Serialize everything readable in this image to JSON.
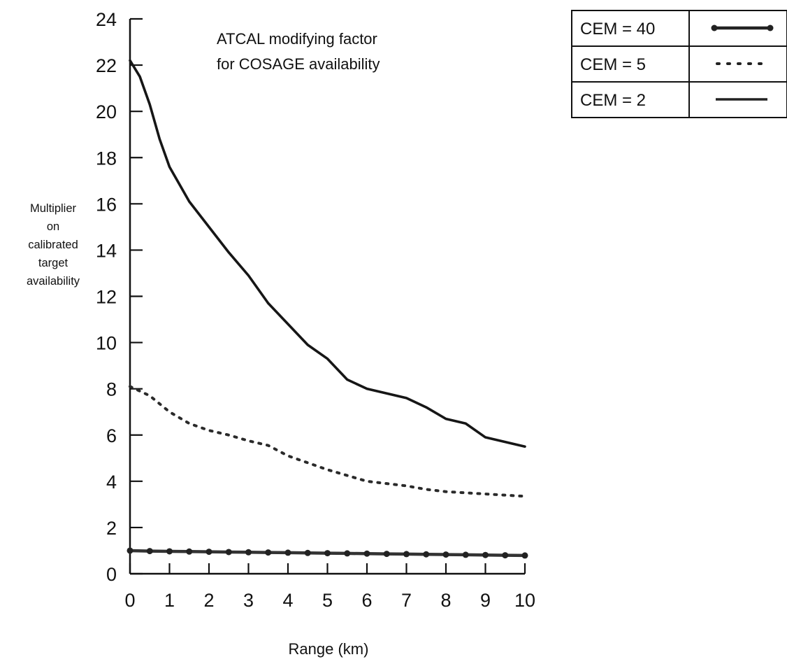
{
  "chart_data": {
    "type": "line",
    "title_lines": [
      "ATCAL modifying factor",
      "for COSAGE availability"
    ],
    "xlabel": "Range (km)",
    "ylabel_lines": [
      "Multiplier",
      "on",
      "calibrated",
      "target",
      "availability"
    ],
    "xlim": [
      0,
      10
    ],
    "ylim": [
      0,
      24
    ],
    "x_ticks": [
      0,
      1,
      2,
      3,
      4,
      5,
      6,
      7,
      8,
      9,
      10
    ],
    "y_ticks": [
      0,
      2,
      4,
      6,
      8,
      10,
      12,
      14,
      16,
      18,
      20,
      22,
      24
    ],
    "legend_position": "top-right",
    "series": [
      {
        "name": "CEM = 40",
        "style": "line-with-dots",
        "x": [
          0,
          0.5,
          1,
          1.5,
          2,
          2.5,
          3,
          3.5,
          4,
          4.5,
          5,
          5.5,
          6,
          6.5,
          7,
          7.5,
          8,
          8.5,
          9,
          9.5,
          10
        ],
        "y": [
          1.0,
          0.98,
          0.97,
          0.96,
          0.95,
          0.94,
          0.93,
          0.92,
          0.91,
          0.9,
          0.89,
          0.88,
          0.87,
          0.86,
          0.85,
          0.84,
          0.83,
          0.82,
          0.81,
          0.8,
          0.79
        ]
      },
      {
        "name": "CEM = 5",
        "style": "dotted",
        "x": [
          0,
          0.5,
          1,
          1.5,
          2,
          2.5,
          3,
          3.5,
          4,
          4.5,
          5,
          5.5,
          6,
          6.5,
          7,
          7.5,
          8,
          8.5,
          9,
          9.5,
          10
        ],
        "y": [
          8.1,
          7.7,
          7.0,
          6.5,
          6.2,
          6.0,
          5.75,
          5.55,
          5.1,
          4.8,
          4.5,
          4.25,
          4.0,
          3.9,
          3.8,
          3.65,
          3.55,
          3.5,
          3.45,
          3.4,
          3.35
        ]
      },
      {
        "name": "CEM = 2",
        "style": "solid",
        "x": [
          0,
          0.25,
          0.5,
          0.75,
          1,
          1.5,
          2,
          2.5,
          3,
          3.5,
          4,
          4.5,
          5,
          5.5,
          6,
          6.5,
          7,
          7.5,
          8,
          8.5,
          9,
          9.5,
          10
        ],
        "y": [
          22.2,
          21.5,
          20.3,
          18.8,
          17.6,
          16.1,
          15.0,
          13.9,
          12.9,
          11.7,
          10.8,
          9.9,
          9.3,
          8.4,
          8.0,
          7.8,
          7.6,
          7.2,
          6.7,
          6.5,
          5.9,
          5.7,
          5.5
        ]
      }
    ]
  }
}
